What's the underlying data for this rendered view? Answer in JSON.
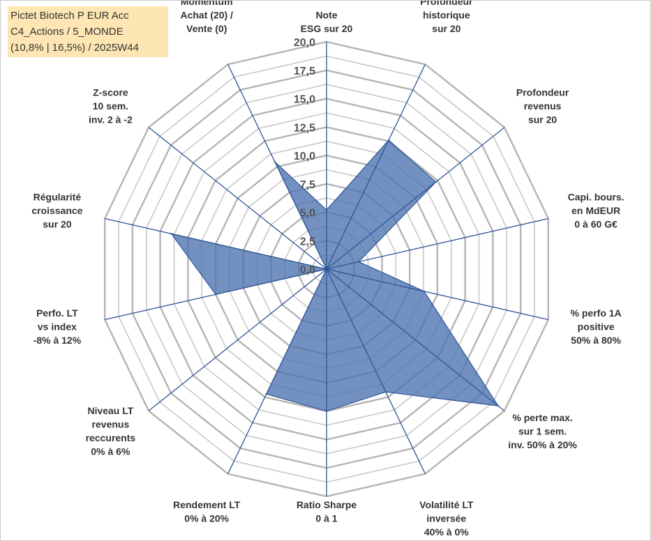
{
  "header": {
    "line1": "Pictet Biotech P EUR Acc",
    "line2": "C4_Actions / 5_MONDE",
    "line3": "(10,8% | 16,5%) / 2025W44"
  },
  "chart_data": {
    "type": "radar",
    "rmax": 20,
    "ticks": [
      "0,0",
      "2,5",
      "5,0",
      "7,5",
      "10,0",
      "12,5",
      "15,0",
      "17,5",
      "20,0"
    ],
    "tick_values": [
      0,
      2.5,
      5,
      7.5,
      10,
      12.5,
      15,
      17.5,
      20
    ],
    "minor_rings": [
      1.25,
      3.75,
      6.25,
      8.75,
      11.25,
      13.75,
      16.25,
      18.75
    ],
    "categories": [
      [
        "Note",
        "ESG sur 20"
      ],
      [
        "Profondeur",
        "historique",
        "sur 20"
      ],
      [
        "Profondeur",
        "revenus",
        "sur 20"
      ],
      [
        "Capi. bours.",
        "en MdEUR",
        "0 à 60 G€"
      ],
      [
        "% perfo 1A",
        "positive",
        "50% à 80%"
      ],
      [
        "% perte max.",
        "sur 1 sem.",
        "inv. 50% à 20%"
      ],
      [
        "Volatilité LT",
        "inversée",
        "40% à 0%"
      ],
      [
        "Ratio Sharpe",
        "0 à 1"
      ],
      [
        "Rendement LT",
        "0% à 20%"
      ],
      [
        "Niveau LT",
        "revenus",
        "reccurents",
        "0% à 6%"
      ],
      [
        "Perfo. LT",
        "vs index",
        "-8% à 12%"
      ],
      [
        "Régularité",
        "croissance",
        "sur 20"
      ],
      [
        "Z-score",
        "10 sem.",
        "inv. 2 à -2"
      ],
      [
        "Momentum",
        "Achat (20) /",
        "Vente (0)"
      ]
    ],
    "series": [
      {
        "values": [
          5.2,
          12.6,
          12.3,
          2.9,
          8.8,
          19.3,
          12.0,
          12.5,
          12.2,
          0.0,
          10.0,
          14.0,
          0.0,
          10.5
        ]
      }
    ],
    "colors": {
      "fill": "#4a72b0",
      "stroke": "#2f5597",
      "axis": "#2f5597",
      "grid": "#c8c8c8",
      "major": "#b4b4b4"
    }
  }
}
